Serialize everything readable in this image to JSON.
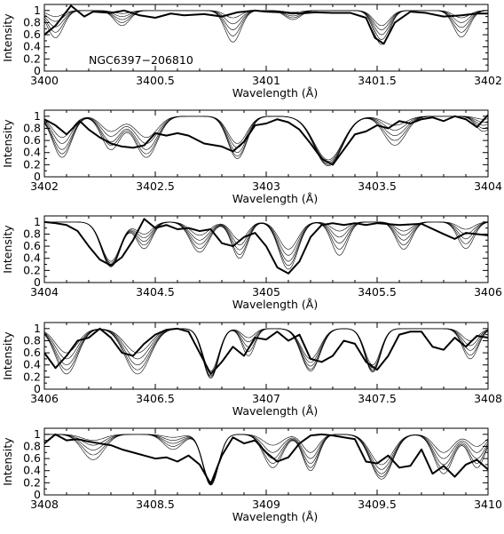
{
  "chart_data": [
    {
      "type": "line",
      "title": "",
      "annotation": "NGC6397−206810",
      "xlabel": "Wavelength (Å)",
      "ylabel": "Intensity",
      "xlim": [
        3400,
        3402
      ],
      "ylim": [
        0,
        1.1
      ],
      "xticks": [
        "3400",
        "3400.5",
        "3401",
        "3401.5",
        "3402"
      ],
      "yticks": [
        "0",
        "0.2",
        "0.4",
        "0.6",
        "0.8",
        "1"
      ],
      "synthetic_style": {
        "continuum": 1.0,
        "lines": [
          {
            "center": 3400.05,
            "width": 0.05,
            "depth": [
              0.1,
              0.18,
              0.27,
              0.36,
              0.45
            ]
          },
          {
            "center": 3400.35,
            "width": 0.05,
            "depth": [
              0.05,
              0.1,
              0.15,
              0.2,
              0.25
            ]
          },
          {
            "center": 3400.85,
            "width": 0.05,
            "depth": [
              0.12,
              0.22,
              0.32,
              0.42,
              0.52
            ]
          },
          {
            "center": 3401.12,
            "width": 0.05,
            "depth": [
              0.03,
              0.06,
              0.09,
              0.12,
              0.15
            ]
          },
          {
            "center": 3401.52,
            "width": 0.05,
            "depth": [
              0.25,
              0.32,
              0.4,
              0.48,
              0.56
            ]
          },
          {
            "center": 3401.88,
            "width": 0.05,
            "depth": [
              0.12,
              0.2,
              0.28,
              0.36,
              0.44
            ]
          }
        ]
      },
      "observed": {
        "x": [
          3400,
          3400.05,
          3400.12,
          3400.18,
          3400.22,
          3400.3,
          3400.36,
          3400.43,
          3400.5,
          3400.57,
          3400.63,
          3400.72,
          3400.8,
          3400.87,
          3400.95,
          3401.0,
          3401.07,
          3401.15,
          3401.22,
          3401.3,
          3401.38,
          3401.45,
          3401.49,
          3401.53,
          3401.58,
          3401.65,
          3401.72,
          3401.8,
          3401.88,
          3401.95,
          3402
        ],
        "y": [
          0.6,
          0.75,
          1.08,
          0.9,
          0.98,
          0.96,
          1.0,
          0.92,
          0.88,
          0.95,
          0.92,
          0.94,
          0.9,
          0.97,
          1.0,
          0.98,
          0.97,
          0.95,
          0.97,
          0.96,
          0.96,
          0.88,
          0.55,
          0.45,
          0.8,
          0.98,
          0.96,
          0.9,
          0.92,
          0.95,
          0.95
        ]
      }
    },
    {
      "type": "line",
      "title": "",
      "xlabel": "Wavelength (Å)",
      "ylabel": "Intensity",
      "xlim": [
        3402,
        3404
      ],
      "ylim": [
        0,
        1.1
      ],
      "xticks": [
        "3402",
        "3402.5",
        "3403",
        "3403.5",
        "3404"
      ],
      "yticks": [
        "0",
        "0.2",
        "0.4",
        "0.6",
        "0.8",
        "1"
      ],
      "synthetic_style": {
        "continuum": 1.0,
        "lines": [
          {
            "center": 3402.08,
            "width": 0.06,
            "depth": [
              0.35,
              0.45,
              0.55,
              0.62,
              0.68
            ]
          },
          {
            "center": 3402.3,
            "width": 0.06,
            "depth": [
              0.25,
              0.33,
              0.42,
              0.48,
              0.55
            ]
          },
          {
            "center": 3402.46,
            "width": 0.07,
            "depth": [
              0.35,
              0.45,
              0.55,
              0.62,
              0.68
            ]
          },
          {
            "center": 3402.87,
            "width": 0.06,
            "depth": [
              0.45,
              0.52,
              0.6,
              0.66,
              0.7
            ]
          },
          {
            "center": 3403.28,
            "width": 0.09,
            "depth": [
              0.72,
              0.75,
              0.78,
              0.8,
              0.82
            ]
          },
          {
            "center": 3403.58,
            "width": 0.07,
            "depth": [
              0.15,
              0.23,
              0.32,
              0.4,
              0.48
            ]
          },
          {
            "center": 3403.98,
            "width": 0.05,
            "depth": [
              0.05,
              0.1,
              0.15,
              0.2,
              0.25
            ]
          }
        ]
      },
      "observed": {
        "x": [
          3402,
          3402.05,
          3402.1,
          3402.16,
          3402.2,
          3402.25,
          3402.3,
          3402.35,
          3402.4,
          3402.45,
          3402.5,
          3402.55,
          3402.6,
          3402.65,
          3402.72,
          3402.8,
          3402.85,
          3402.9,
          3402.95,
          3403.0,
          3403.05,
          3403.1,
          3403.15,
          3403.2,
          3403.25,
          3403.3,
          3403.35,
          3403.4,
          3403.45,
          3403.5,
          3403.55,
          3403.6,
          3403.65,
          3403.7,
          3403.75,
          3403.8,
          3403.85,
          3403.9,
          3403.95,
          3404
        ],
        "y": [
          0.95,
          0.85,
          0.7,
          0.92,
          0.78,
          0.65,
          0.55,
          0.5,
          0.48,
          0.52,
          0.72,
          0.68,
          0.72,
          0.68,
          0.55,
          0.5,
          0.42,
          0.58,
          0.85,
          0.88,
          0.95,
          0.9,
          0.78,
          0.55,
          0.3,
          0.2,
          0.45,
          0.7,
          0.75,
          0.85,
          0.8,
          0.92,
          0.88,
          0.95,
          0.98,
          0.92,
          1.0,
          0.95,
          0.82,
          1.02
        ]
      }
    },
    {
      "type": "line",
      "title": "",
      "xlabel": "Wavelength (Å)",
      "ylabel": "Intensity",
      "xlim": [
        3404,
        3406
      ],
      "ylim": [
        0,
        1.1
      ],
      "xticks": [
        "3404",
        "3404.5",
        "3405",
        "3405.5",
        "3406"
      ],
      "yticks": [
        "0",
        "0.2",
        "0.4",
        "0.6",
        "0.8",
        "1"
      ],
      "synthetic_style": {
        "continuum": 1.0,
        "lines": [
          {
            "center": 3404.3,
            "width": 0.06,
            "depth": [
              0.65,
              0.68,
              0.7,
              0.72,
              0.74
            ]
          },
          {
            "center": 3404.45,
            "width": 0.05,
            "depth": [
              0.2,
              0.26,
              0.32,
              0.38,
              0.44
            ]
          },
          {
            "center": 3404.7,
            "width": 0.06,
            "depth": [
              0.22,
              0.3,
              0.37,
              0.44,
              0.5
            ]
          },
          {
            "center": 3404.88,
            "width": 0.05,
            "depth": [
              0.3,
              0.38,
              0.46,
              0.54,
              0.6
            ]
          },
          {
            "center": 3405.1,
            "width": 0.06,
            "depth": [
              0.45,
              0.55,
              0.65,
              0.72,
              0.78
            ]
          },
          {
            "center": 3405.33,
            "width": 0.05,
            "depth": [
              0.15,
              0.25,
              0.35,
              0.45,
              0.55
            ]
          },
          {
            "center": 3405.62,
            "width": 0.05,
            "depth": [
              0.15,
              0.22,
              0.3,
              0.38,
              0.45
            ]
          },
          {
            "center": 3405.9,
            "width": 0.05,
            "depth": [
              0.12,
              0.2,
              0.28,
              0.36,
              0.44
            ]
          }
        ]
      },
      "observed": {
        "x": [
          3404,
          3404.05,
          3404.1,
          3404.15,
          3404.2,
          3404.25,
          3404.3,
          3404.35,
          3404.4,
          3404.45,
          3404.5,
          3404.55,
          3404.6,
          3404.65,
          3404.7,
          3404.75,
          3404.8,
          3404.85,
          3404.9,
          3404.95,
          3405.0,
          3405.05,
          3405.1,
          3405.15,
          3405.2,
          3405.25,
          3405.3,
          3405.35,
          3405.4,
          3405.45,
          3405.5,
          3405.6,
          3405.7,
          3405.8,
          3405.85,
          3405.9,
          3406
        ],
        "y": [
          1.0,
          0.98,
          0.95,
          0.85,
          0.6,
          0.38,
          0.28,
          0.42,
          0.7,
          1.05,
          0.9,
          0.95,
          0.88,
          0.9,
          0.85,
          0.88,
          0.65,
          0.6,
          0.75,
          0.82,
          0.6,
          0.25,
          0.15,
          0.35,
          0.75,
          0.95,
          0.98,
          0.95,
          0.98,
          0.95,
          0.98,
          0.95,
          0.97,
          0.8,
          0.72,
          0.82,
          0.78
        ]
      }
    },
    {
      "type": "line",
      "title": "",
      "xlabel": "Wavelength (Å)",
      "ylabel": "Intensity",
      "xlim": [
        3406,
        3408
      ],
      "ylim": [
        0,
        1.1
      ],
      "xticks": [
        "3406",
        "3406.5",
        "3407",
        "3407.5",
        "3408"
      ],
      "yticks": [
        "0",
        "0.2",
        "0.4",
        "0.6",
        "0.8",
        "1"
      ],
      "synthetic_style": {
        "continuum": 1.0,
        "lines": [
          {
            "center": 3406.1,
            "width": 0.07,
            "depth": [
              0.4,
              0.5,
              0.6,
              0.68,
              0.75
            ]
          },
          {
            "center": 3406.42,
            "width": 0.08,
            "depth": [
              0.4,
              0.5,
              0.6,
              0.68,
              0.75
            ]
          },
          {
            "center": 3406.75,
            "width": 0.05,
            "depth": [
              0.7,
              0.74,
              0.78,
              0.8,
              0.82
            ]
          },
          {
            "center": 3406.92,
            "width": 0.04,
            "depth": [
              0.15,
              0.22,
              0.3,
              0.38,
              0.45
            ]
          },
          {
            "center": 3407.2,
            "width": 0.06,
            "depth": [
              0.5,
              0.56,
              0.62,
              0.67,
              0.7
            ]
          },
          {
            "center": 3407.48,
            "width": 0.05,
            "depth": [
              0.6,
              0.65,
              0.68,
              0.7,
              0.72
            ]
          },
          {
            "center": 3407.92,
            "width": 0.05,
            "depth": [
              0.2,
              0.28,
              0.36,
              0.44,
              0.5
            ]
          }
        ]
      },
      "observed": {
        "x": [
          3406,
          3406.05,
          3406.1,
          3406.15,
          3406.2,
          3406.25,
          3406.3,
          3406.35,
          3406.4,
          3406.45,
          3406.5,
          3406.55,
          3406.6,
          3406.65,
          3406.7,
          3406.75,
          3406.8,
          3406.85,
          3406.9,
          3406.95,
          3407.0,
          3407.05,
          3407.1,
          3407.15,
          3407.2,
          3407.25,
          3407.3,
          3407.35,
          3407.4,
          3407.45,
          3407.5,
          3407.55,
          3407.6,
          3407.65,
          3407.7,
          3407.75,
          3407.8,
          3407.85,
          3407.9,
          3407.95,
          3408
        ],
        "y": [
          0.6,
          0.35,
          0.55,
          0.8,
          0.85,
          1.0,
          0.85,
          0.6,
          0.55,
          0.75,
          0.9,
          0.98,
          1.0,
          0.95,
          0.6,
          0.25,
          0.45,
          0.7,
          0.55,
          0.85,
          0.82,
          0.95,
          0.8,
          0.9,
          0.5,
          0.45,
          0.55,
          0.8,
          0.75,
          0.45,
          0.32,
          0.55,
          0.9,
          0.95,
          0.95,
          0.7,
          0.65,
          0.85,
          0.7,
          0.88,
          0.85
        ]
      }
    },
    {
      "type": "line",
      "title": "",
      "xlabel": "Wavelength (Å)",
      "ylabel": "Intensity",
      "xlim": [
        3408,
        3410
      ],
      "ylim": [
        0,
        1.1
      ],
      "xticks": [
        "3408",
        "3408.5",
        "3409",
        "3409.5",
        "3410"
      ],
      "yticks": [
        "0",
        "0.2",
        "0.4",
        "0.6",
        "0.8",
        "1"
      ],
      "synthetic_style": {
        "continuum": 1.0,
        "lines": [
          {
            "center": 3408.22,
            "width": 0.07,
            "depth": [
              0.1,
              0.18,
              0.26,
              0.34,
              0.42
            ]
          },
          {
            "center": 3408.58,
            "width": 0.06,
            "depth": [
              0.05,
              0.1,
              0.15,
              0.2,
              0.25
            ]
          },
          {
            "center": 3408.75,
            "width": 0.05,
            "depth": [
              0.78,
              0.8,
              0.82,
              0.83,
              0.84
            ]
          },
          {
            "center": 3409.03,
            "width": 0.06,
            "depth": [
              0.18,
              0.3,
              0.4,
              0.48,
              0.55
            ]
          },
          {
            "center": 3409.2,
            "width": 0.05,
            "depth": [
              0.3,
              0.4,
              0.48,
              0.55,
              0.6
            ]
          },
          {
            "center": 3409.52,
            "width": 0.07,
            "depth": [
              0.5,
              0.58,
              0.65,
              0.7,
              0.74
            ]
          },
          {
            "center": 3409.8,
            "width": 0.06,
            "depth": [
              0.3,
              0.4,
              0.5,
              0.58,
              0.65
            ]
          },
          {
            "center": 3409.95,
            "width": 0.05,
            "depth": [
              0.2,
              0.3,
              0.4,
              0.48,
              0.55
            ]
          }
        ]
      },
      "observed": {
        "x": [
          3408,
          3408.05,
          3408.1,
          3408.15,
          3408.2,
          3408.25,
          3408.3,
          3408.35,
          3408.4,
          3408.45,
          3408.5,
          3408.55,
          3408.6,
          3408.65,
          3408.7,
          3408.75,
          3408.8,
          3408.85,
          3408.9,
          3408.95,
          3409.0,
          3409.05,
          3409.1,
          3409.15,
          3409.2,
          3409.25,
          3409.3,
          3409.35,
          3409.4,
          3409.45,
          3409.5,
          3409.55,
          3409.6,
          3409.65,
          3409.7,
          3409.75,
          3409.8,
          3409.85,
          3409.9,
          3409.95,
          3410
        ],
        "y": [
          0.85,
          1.0,
          0.9,
          0.92,
          0.88,
          0.85,
          0.82,
          0.75,
          0.7,
          0.65,
          0.6,
          0.62,
          0.55,
          0.65,
          0.5,
          0.18,
          0.65,
          0.95,
          0.85,
          0.9,
          0.7,
          0.55,
          0.62,
          0.85,
          0.98,
          1.0,
          0.98,
          0.95,
          0.92,
          0.55,
          0.52,
          0.65,
          0.45,
          0.48,
          0.75,
          0.35,
          0.48,
          0.3,
          0.5,
          0.58,
          0.42
        ]
      }
    }
  ]
}
